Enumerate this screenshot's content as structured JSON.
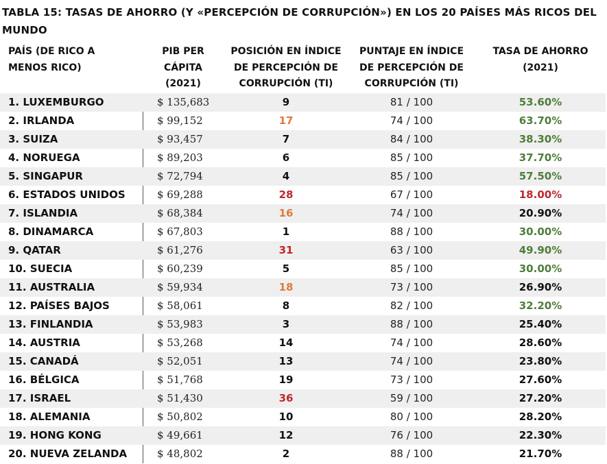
{
  "title": "TABLA 15: TASAS DE AHORRO (Y «PERCEPCIÓN DE CORRUPCIÓN») EN LOS 20 PAÍSES MÁS RICOS DEL MUNDO",
  "colors": {
    "rank_orange": "#e0793b",
    "rank_red": "#c0272d",
    "rate_green": "#4e7e3a",
    "rate_red": "#c0272d",
    "default_text": "#111111",
    "shade": "#efefef"
  },
  "columns": [
    [
      "PAÍS (DE RICO A",
      "MENOS RICO)"
    ],
    [
      "PIB PER",
      "CÁPITA",
      "(2021)"
    ],
    [
      "POSICIÓN EN ÍNDICE",
      "DE PERCEPCIÓN DE",
      "CORRUPCIÓN (TI)"
    ],
    [
      "PUNTAJE EN ÍNDICE",
      "DE PERCEPCIÓN DE",
      "CORRUPCIÓN (TI)"
    ],
    [
      "TASA DE AHORRO",
      "(2021)"
    ]
  ],
  "rows": [
    {
      "country": "1. LUXEMBURGO",
      "gdp": "$ 135,683",
      "rank": "9",
      "rank_color": "default",
      "score": "81 / 100",
      "rate": "53.60%",
      "rate_color": "green"
    },
    {
      "country": "2. IRLANDA",
      "gdp": "$ 99,152",
      "rank": "17",
      "rank_color": "orange",
      "score": "74 / 100",
      "rate": "63.70%",
      "rate_color": "green"
    },
    {
      "country": "3. SUIZA",
      "gdp": "$ 93,457",
      "rank": "7",
      "rank_color": "default",
      "score": "84 / 100",
      "rate": "38.30%",
      "rate_color": "green"
    },
    {
      "country": "4. NORUEGA",
      "gdp": "$ 89,203",
      "rank": "6",
      "rank_color": "default",
      "score": "85 / 100",
      "rate": "37.70%",
      "rate_color": "green"
    },
    {
      "country": "5. SINGAPUR",
      "gdp": "$ 72,794",
      "rank": "4",
      "rank_color": "default",
      "score": "85 / 100",
      "rate": "57.50%",
      "rate_color": "green"
    },
    {
      "country": "6. ESTADOS UNIDOS",
      "gdp": "$ 69,288",
      "rank": "28",
      "rank_color": "red",
      "score": "67 / 100",
      "rate": "18.00%",
      "rate_color": "red"
    },
    {
      "country": "7. ISLANDIA",
      "gdp": "$ 68,384",
      "rank": "16",
      "rank_color": "orange",
      "score": "74 / 100",
      "rate": "20.90%",
      "rate_color": "default"
    },
    {
      "country": "8. DINAMARCA",
      "gdp": "$ 67,803",
      "rank": "1",
      "rank_color": "default",
      "score": "88 / 100",
      "rate": "30.00%",
      "rate_color": "green"
    },
    {
      "country": "9. QATAR",
      "gdp": "$ 61,276",
      "rank": "31",
      "rank_color": "red",
      "score": "63 / 100",
      "rate": "49.90%",
      "rate_color": "green"
    },
    {
      "country": "10. SUECIA",
      "gdp": "$ 60,239",
      "rank": "5",
      "rank_color": "default",
      "score": "85 / 100",
      "rate": "30.00%",
      "rate_color": "green"
    },
    {
      "country": "11. AUSTRALIA",
      "gdp": "$ 59,934",
      "rank": "18",
      "rank_color": "orange",
      "score": "73 / 100",
      "rate": "26.90%",
      "rate_color": "default"
    },
    {
      "country": "12. PAÍSES BAJOS",
      "gdp": "$ 58,061",
      "rank": "8",
      "rank_color": "default",
      "score": "82 / 100",
      "rate": "32.20%",
      "rate_color": "green"
    },
    {
      "country": "13. FINLANDIA",
      "gdp": "$ 53,983",
      "rank": "3",
      "rank_color": "default",
      "score": "88 / 100",
      "rate": "25.40%",
      "rate_color": "default"
    },
    {
      "country": "14. AUSTRIA",
      "gdp": "$ 53,268",
      "rank": "14",
      "rank_color": "default",
      "score": "74 / 100",
      "rate": "28.60%",
      "rate_color": "default"
    },
    {
      "country": "15. CANADÁ",
      "gdp": "$ 52,051",
      "rank": "13",
      "rank_color": "default",
      "score": "74 / 100",
      "rate": "23.80%",
      "rate_color": "default"
    },
    {
      "country": "16. BÉLGICA",
      "gdp": "$ 51,768",
      "rank": "19",
      "rank_color": "default",
      "score": "73 / 100",
      "rate": "27.60%",
      "rate_color": "default"
    },
    {
      "country": "17. ISRAEL",
      "gdp": "$ 51,430",
      "rank": "36",
      "rank_color": "red",
      "score": "59 / 100",
      "rate": "27.20%",
      "rate_color": "default"
    },
    {
      "country": "18. ALEMANIA",
      "gdp": "$ 50,802",
      "rank": "10",
      "rank_color": "default",
      "score": "80 / 100",
      "rate": "28.20%",
      "rate_color": "default"
    },
    {
      "country": "19. HONG KONG",
      "gdp": "$ 49,661",
      "rank": "12",
      "rank_color": "default",
      "score": "76 / 100",
      "rate": "22.30%",
      "rate_color": "default"
    },
    {
      "country": "20. NUEVA ZELANDA",
      "gdp": "$ 48,802",
      "rank": "2",
      "rank_color": "default",
      "score": "88 / 100",
      "rate": "21.70%",
      "rate_color": "default"
    }
  ]
}
